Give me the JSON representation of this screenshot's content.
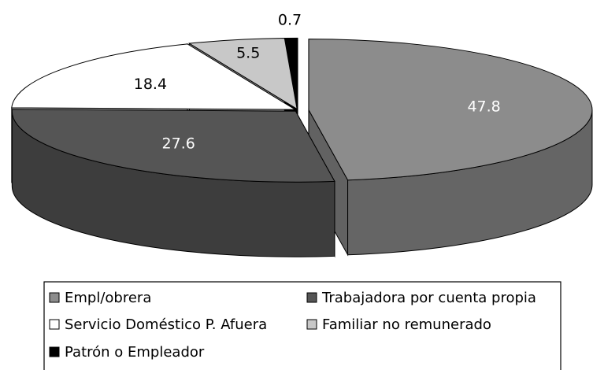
{
  "chart_data": {
    "type": "pie",
    "categories": [
      "Empl/obrera",
      "Trabajadora por cuenta propia",
      "Servicio Doméstico P. Afuera",
      "Familiar no remunerado",
      "Patrón o Empleador"
    ],
    "values": [
      47.8,
      27.6,
      18.4,
      5.5,
      0.7
    ],
    "colors": [
      "#8c8c8c",
      "#555555",
      "#ffffff",
      "#c8c8c8",
      "#000000"
    ]
  }
}
